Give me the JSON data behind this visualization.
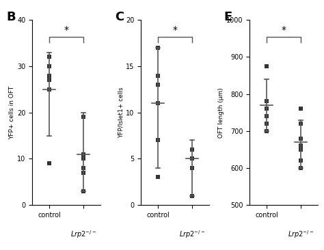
{
  "panel_B": {
    "label": "B",
    "ylabel": "YFP+ cells in OFT",
    "ylim": [
      0,
      40
    ],
    "yticks": [
      0,
      10,
      20,
      30,
      40
    ],
    "control_points": [
      30,
      28,
      27,
      32,
      30,
      9,
      25
    ],
    "control_mean": 25,
    "control_sd_low": 15,
    "control_sd_high": 33,
    "lrp2_points": [
      19,
      11,
      10,
      8,
      7,
      3,
      11
    ],
    "lrp2_mean": 11,
    "lrp2_sd_low": 3,
    "lrp2_sd_high": 20
  },
  "panel_C": {
    "label": "C",
    "ylabel": "YFP/Islet1+ cells",
    "ylim": [
      0,
      20
    ],
    "yticks": [
      0,
      5,
      10,
      15,
      20
    ],
    "control_points": [
      17,
      14,
      13,
      7,
      3,
      11
    ],
    "control_mean": 11,
    "control_sd_low": 4,
    "control_sd_high": 17,
    "lrp2_points": [
      6,
      5,
      5,
      4,
      1
    ],
    "lrp2_mean": 5,
    "lrp2_sd_low": 1,
    "lrp2_sd_high": 7
  },
  "panel_E": {
    "label": "E",
    "ylabel": "OFT length (μm)",
    "ylim": [
      500,
      1000
    ],
    "yticks": [
      500,
      600,
      700,
      800,
      900,
      1000
    ],
    "control_points": [
      875,
      780,
      760,
      740,
      720,
      700
    ],
    "control_mean": 770,
    "control_sd_low": 700,
    "control_sd_high": 840,
    "lrp2_points": [
      760,
      720,
      680,
      660,
      650,
      620,
      600
    ],
    "lrp2_mean": 670,
    "lrp2_sd_low": 600,
    "lrp2_sd_high": 730
  },
  "x_labels": [
    "control",
    "Lrp2⁻/⁻"
  ],
  "dot_color": "#333333",
  "line_color": "#555555",
  "sig_line_color": "#555555",
  "marker_size": 5,
  "sig_star": "*"
}
